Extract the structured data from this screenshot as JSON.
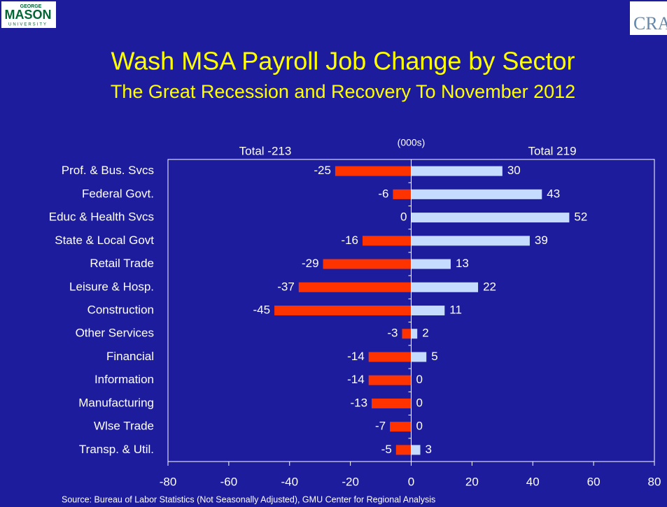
{
  "logo": {
    "top": "GEORGE",
    "main": "MASON",
    "bottom": "UNIVERSITY",
    "right": "CRA"
  },
  "chart_data": {
    "type": "bar",
    "orientation": "horizontal",
    "title": "Wash MSA Payroll Job Change by Sector",
    "subtitle": "The Great Recession and Recovery To November 2012",
    "annotations": [
      "Total -213",
      "(000s)",
      "Total 219"
    ],
    "source": "Source: Bureau of Labor Statistics (Not Seasonally Adjusted), GMU Center for Regional Analysis",
    "categories": [
      "Prof. & Bus. Svcs",
      "Federal Govt.",
      "Educ & Health Svcs",
      "State & Local Govt",
      "Retail Trade",
      "Leisure & Hosp.",
      "Construction",
      "Other Services",
      "Financial",
      "Information",
      "Manufacturing",
      "Wlse Trade",
      "Transp. & Util."
    ],
    "series": [
      {
        "color": "#ff3300",
        "values": [
          -25,
          -6,
          0,
          -16,
          -29,
          -37,
          -45,
          -3,
          -14,
          -14,
          -13,
          -7,
          -5
        ]
      },
      {
        "color": "#c6dcff",
        "values": [
          30,
          43,
          52,
          39,
          13,
          22,
          11,
          2,
          5,
          0,
          0,
          0,
          3
        ]
      }
    ],
    "xlim": [
      -80,
      80
    ],
    "xticks": [
      -80,
      -60,
      -40,
      -20,
      0,
      20,
      40,
      60,
      80
    ]
  }
}
